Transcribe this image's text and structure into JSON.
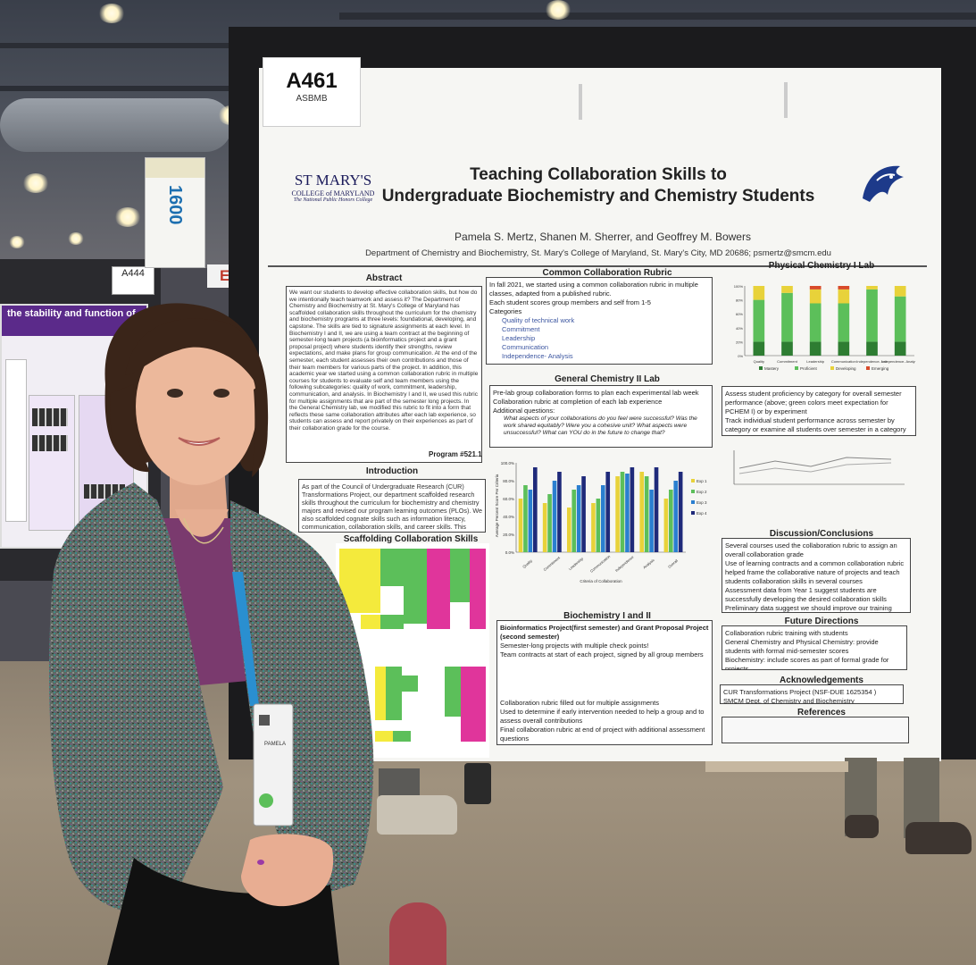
{
  "scene": {
    "description_tags": [
      "conference-hall",
      "scientific-poster",
      "presenter"
    ]
  },
  "poster": {
    "number": "A461",
    "society": "ASBMB",
    "college_name": "ST MARY'S",
    "college_sub": "COLLEGE of MARYLAND",
    "college_tag": "The National Public Honors College",
    "title_line1": "Teaching Collaboration Skills to",
    "title_line2": "Undergraduate Biochemistry and Chemistry Students",
    "authors": "Pamela S. Mertz, Shanen M. Sherrer, and Geoffrey M. Bowers",
    "department": "Department of Chemistry and Biochemistry, St. Mary's College of Maryland, St. Mary's City, MD 20686; psmertz@smcm.edu",
    "sections": {
      "abstract": "Abstract",
      "abstract_text": "We want our students to develop effective collaboration skills, but how do we intentionally teach teamwork and assess it? The Department of Chemistry and Biochemistry at St. Mary's College of Maryland has scaffolded collaboration skills throughout the curriculum for the chemistry and biochemistry programs at three levels: foundational, developing, and capstone. The skills are tied to signature assignments at each level. In Biochemistry I and II, we are using a team contract at the beginning of semester-long team projects (a bioinformatics project and a grant proposal project) where students identify their strengths, review expectations, and make plans for group communication. At the end of the semester, each student assesses their own contributions and those of their team members for various parts of the project. In addition, this academic year we started using a common collaboration rubric in multiple courses for students to evaluate self and team members using the following subcategories: quality of work, commitment, leadership, communication, and analysis. In Biochemistry I and II, we used this rubric for multiple assignments that are part of the semester long projects. In the General Chemistry lab, we modified this rubric to fit into a form that reflects these same collaboration attributes after each lab experience, so students can assess and report privately on their experiences as part of their collaboration grade for the course.",
      "program": "Program #521.1",
      "intro": "Introduction",
      "intro_text": "As part of the Council of Undergraduate Research (CUR) Transformations Project, our department scaffolded research skills throughout the curriculum for biochemistry and chemistry majors and revised our program learning outcomes (PLOs). We also scaffolded cognate skills such as information literacy, communication, collaboration skills, and career skills. This poster will focus on the scaffolding of our collaboration PLO.",
      "scaffolding": "Scaffolding Collaboration Skills",
      "rubric": "Common Collaboration Rubric",
      "rubric_items": [
        "In fall 2021, we started using a common collaboration rubric in multiple classes, adapted from a published rubric.",
        "Each student scores group members and self from 1-5",
        "Categories"
      ],
      "rubric_categories": [
        "Quality of technical work",
        "Commitment",
        "Leadership",
        "Communication",
        "Independence- Analysis"
      ],
      "genchem": "General Chemistry II Lab",
      "genchem_items": [
        "Pre-lab group collaboration forms to plan each experimental lab week",
        "Collaboration rubric at completion of each lab experience",
        "Additional questions:"
      ],
      "genchem_q": "What aspects of your collaborations do you feel were successful? Was the work shared equitably? Were you a cohesive unit? What aspects were unsuccessful? What can YOU do in the future to change that?",
      "biochem": "Biochemistry I and II",
      "biochem_sub": "Bioinformatics Project(first semester) and Grant Proposal Project (second semester)",
      "biochem_items": [
        "Semester-long projects with multiple check points!",
        "Team contracts at start of each project, signed by all group members",
        "Collaboration rubric filled out for multiple assignments",
        "Used to determine if early intervention needed to help a group and to assess overall contributions",
        "Final collaboration rubric at end of project with additional assessment questions"
      ],
      "physchem": "Physical Chemistry I Lab",
      "physchem_items": [
        "Assess student proficiency by category for overall semester performance (above; green colors meet expectation for PCHEM I) or by experiment",
        "Track individual student performance across semester by category or examine all students over semester in a category"
      ],
      "discussion": "Discussion/Conclusions",
      "discussion_items": [
        "Several courses used the collaboration rubric to assign an overall collaboration grade",
        "Use of learning contracts and a common collaboration rubric helped frame the collaborative nature of projects and teach students collaboration skills in several courses",
        "Assessment data from Year 1 suggest students are successfully developing the desired collaboration skills",
        "Preliminary data suggest we should improve our training regarding leadership"
      ],
      "future": "Future Directions",
      "future_items": [
        "Collaboration rubric training with students",
        "General Chemistry and Physical Chemistry: provide students with formal mid-semester scores",
        "Biochemistry: include scores as part of formal grade for projects"
      ],
      "ack": "Acknowledgements",
      "ack_items": [
        "CUR Transformations Project (NSF-DUE 1625354 )",
        "SMCM Dept. of Chemistry and Biochemistry"
      ],
      "refs": "References"
    }
  },
  "left_poster": {
    "title": "the stability and function of",
    "tag": "A444",
    "hanger_number": "1600",
    "exit_sign": "EX"
  },
  "badge": {
    "name": "PAMELA"
  },
  "colors": {
    "poster_bg": "#f6f6f3",
    "board": "#1b1b1d",
    "jacket": "#5f6b66",
    "lanyard": "#2a8fd0",
    "chart_green": "#5cbf5a",
    "chart_yellow": "#e8d23a",
    "chart_blue": "#2a4a9a",
    "chart_magenta": "#e0359b"
  },
  "chart_data": [
    {
      "type": "bar",
      "title": "Physical Chemistry I Lab",
      "ylabel": "% Students with Each Score by Category (Semester Average)",
      "categories": [
        "Quality",
        "Commitment",
        "Leadership",
        "Communication",
        "Independence- Lab",
        "Independence- Analysis"
      ],
      "series": [
        {
          "name": "Mastery",
          "values": [
            20,
            20,
            20,
            20,
            20,
            20
          ]
        },
        {
          "name": "Proficient",
          "values": [
            60,
            70,
            55,
            55,
            75,
            65
          ]
        },
        {
          "name": "Developing",
          "values": [
            20,
            10,
            20,
            20,
            5,
            15
          ]
        },
        {
          "name": "Emerging",
          "values": [
            0,
            0,
            5,
            5,
            0,
            0
          ]
        }
      ],
      "ylim": [
        0,
        100
      ]
    },
    {
      "type": "bar",
      "title": "General Chemistry II Lab",
      "ylabel": "Average Percent Score Per Criteria",
      "xlabel": "Criteria of Collaboration",
      "categories": [
        "Quality",
        "Commitment",
        "Leadership",
        "Communication",
        "Independence",
        "Analysis",
        "Overall"
      ],
      "series": [
        {
          "name": "Exp 1",
          "values": [
            60,
            55,
            50,
            55,
            85,
            90,
            60
          ]
        },
        {
          "name": "Exp 2",
          "values": [
            75,
            65,
            70,
            60,
            90,
            85,
            70
          ]
        },
        {
          "name": "Exp 3",
          "values": [
            70,
            80,
            75,
            75,
            88,
            70,
            80
          ]
        },
        {
          "name": "Exp 4",
          "values": [
            95,
            90,
            85,
            90,
            95,
            95,
            90
          ]
        }
      ],
      "ylim": [
        0,
        100
      ]
    }
  ]
}
